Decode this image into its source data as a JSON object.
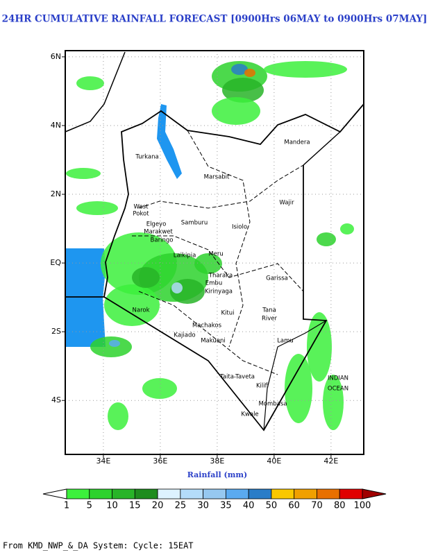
{
  "title": "24HR CUMULATIVE RAINFALL FORECAST [0900Hrs 06MAY to 0900Hrs 07MAY]",
  "map": {
    "xlabel": "Rainfall (mm)",
    "lonlim": [
      32.66,
      43.15
    ],
    "latlim": [
      -5.57,
      6.18
    ],
    "lon_ticks": [
      {
        "value": 34,
        "label": "34E"
      },
      {
        "value": 36,
        "label": "36E"
      },
      {
        "value": 38,
        "label": "38E"
      },
      {
        "value": 40,
        "label": "40E"
      },
      {
        "value": 42,
        "label": "42E"
      }
    ],
    "lat_ticks": [
      {
        "value": 6,
        "label": "6N"
      },
      {
        "value": 4,
        "label": "4N"
      },
      {
        "value": 2,
        "label": "2N"
      },
      {
        "value": 0,
        "label": "EQ"
      },
      {
        "value": -2,
        "label": "2S"
      },
      {
        "value": -4,
        "label": "4S"
      }
    ],
    "grid": true,
    "places": [
      "Turkana",
      "Marsabit",
      "Mandera",
      "Wajir",
      "Isiolo",
      "Samburu",
      "West",
      "Pokot",
      "Elgeyo",
      "Marakwet",
      "Baringo",
      "Laikipia",
      "Meru",
      "Tharaka",
      "Embu",
      "Kirinyaga",
      "Kitui",
      "Garissa",
      "Tana",
      "River",
      "Narok",
      "Kajiado",
      "Machakos",
      "Makueni",
      "Taita-Taveta",
      "Kilifi",
      "Mombasa",
      "Kwale",
      "Lamu",
      "INDIAN",
      "OCEAN"
    ]
  },
  "colorbar": {
    "levels": [
      1,
      5,
      10,
      15,
      20,
      25,
      30,
      35,
      40,
      50,
      60,
      70,
      80,
      100
    ],
    "colors": [
      "#3cf03c",
      "#2dd22d",
      "#28b428",
      "#1e8c1e",
      "#ddf2ff",
      "#b4dcfa",
      "#96c8f0",
      "#5aaaf0",
      "#2a7dc8",
      "#fac800",
      "#f0a000",
      "#e87000",
      "#e00000"
    ],
    "under_color": "#ffffff",
    "over_color": "#a00000"
  },
  "footer": "From KMD_NWP_&_DA System: Cycle: 15EAT"
}
